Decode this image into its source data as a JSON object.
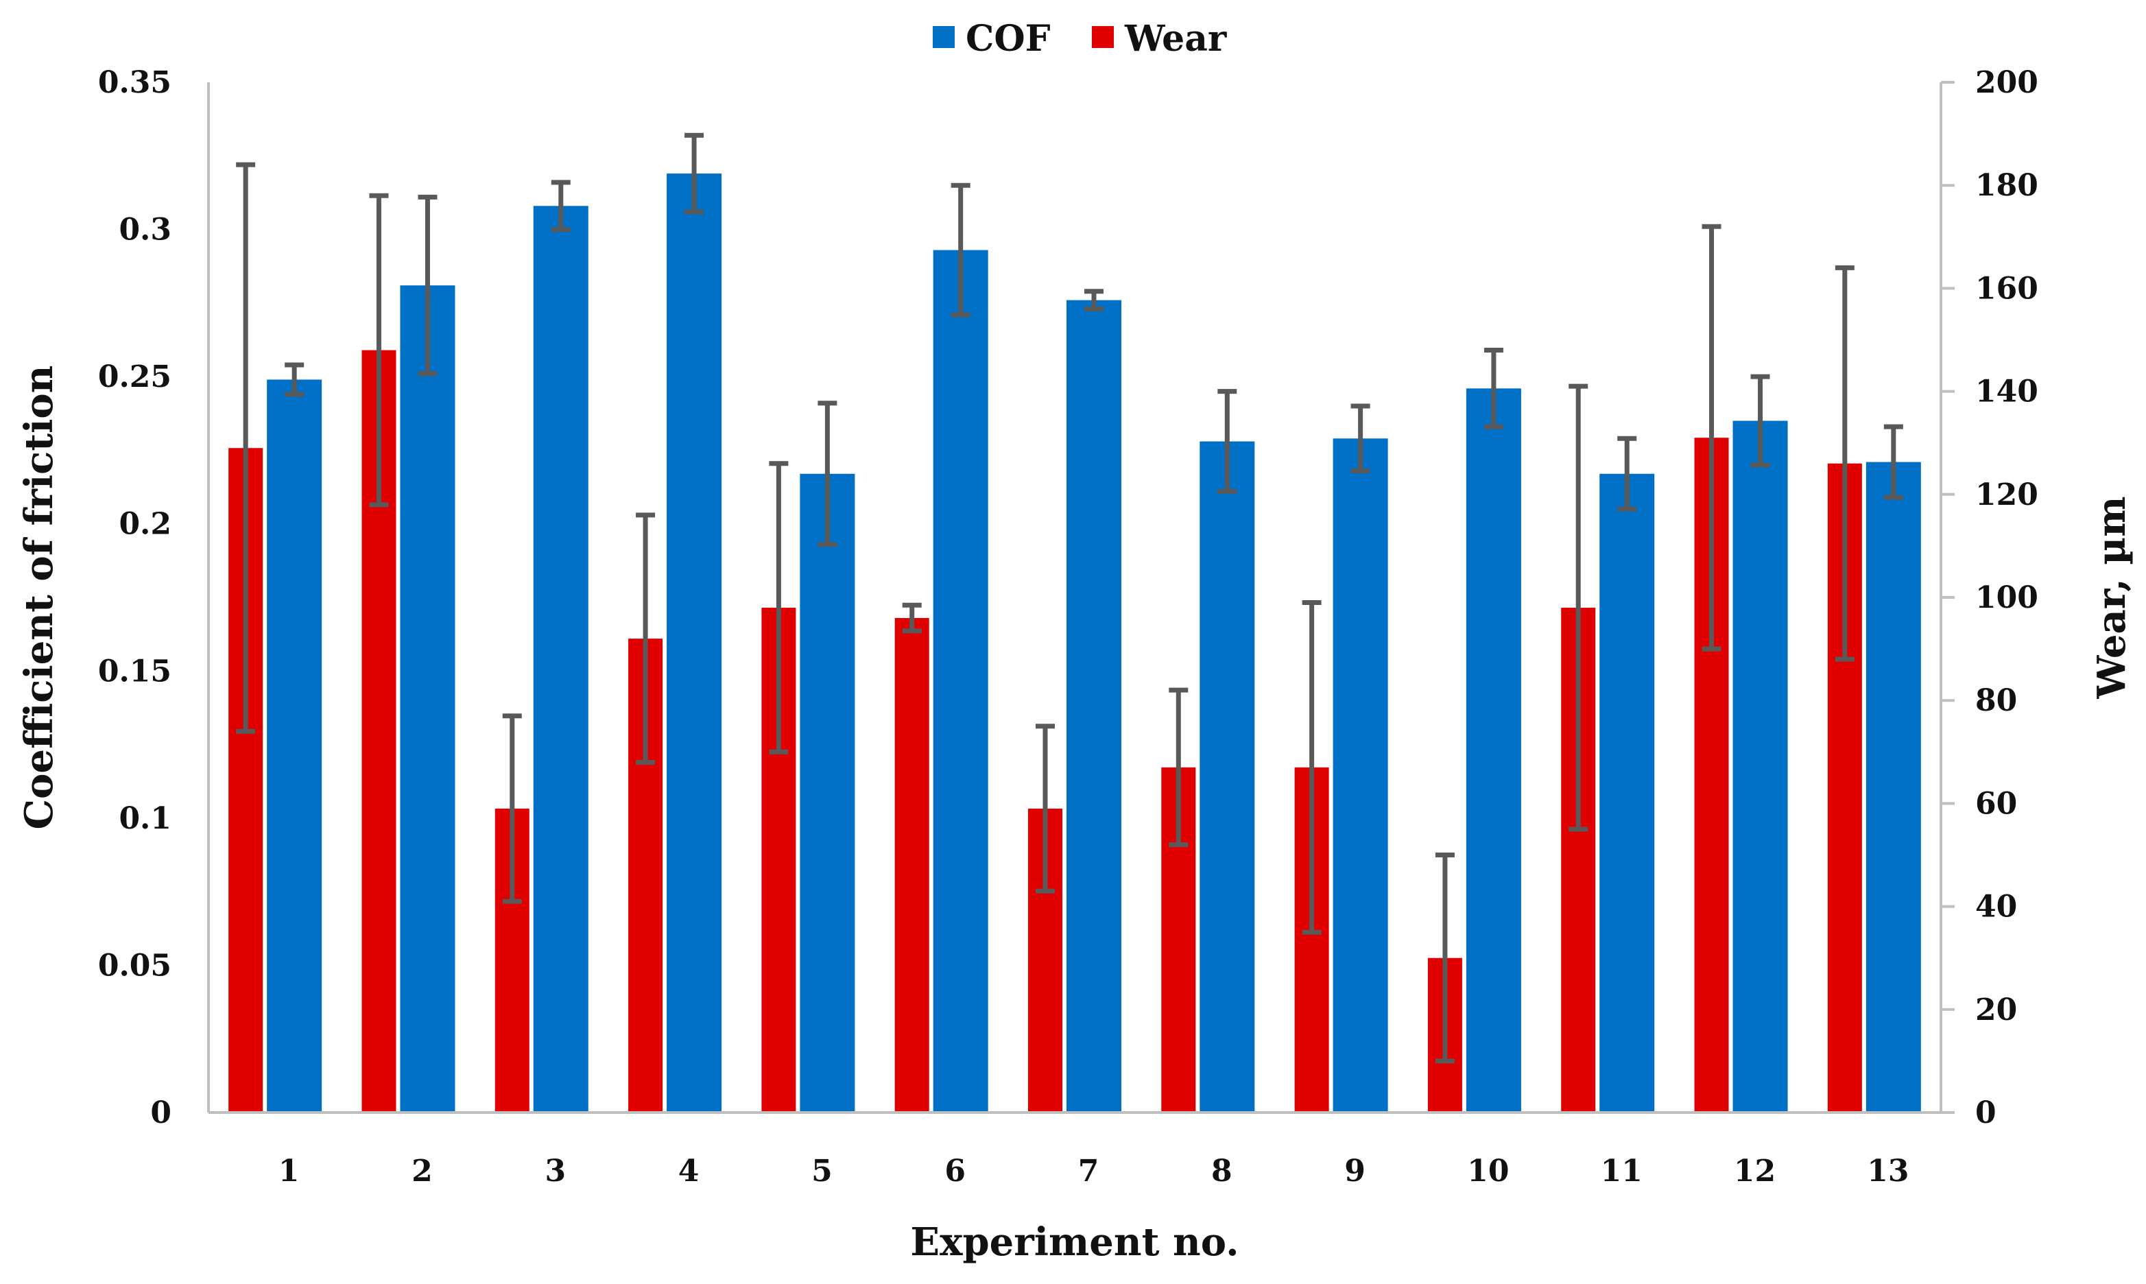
{
  "chart_data": {
    "type": "bar",
    "xlabel": "Experiment no.",
    "ylabel": "Coefficient of friction",
    "y2label": "Wear, µm",
    "categories": [
      "1",
      "2",
      "3",
      "4",
      "5",
      "6",
      "7",
      "8",
      "9",
      "10",
      "11",
      "12",
      "13"
    ],
    "ylim": [
      0,
      0.35
    ],
    "y2lim": [
      0,
      200
    ],
    "yticks": [
      "0",
      "0.05",
      "0.1",
      "0.15",
      "0.2",
      "0.25",
      "0.3",
      "0.35"
    ],
    "y2ticks": [
      "0",
      "20",
      "40",
      "60",
      "80",
      "100",
      "120",
      "140",
      "160",
      "180",
      "200"
    ],
    "legend_position": "top-center",
    "grid": false,
    "series": [
      {
        "name": "Wear",
        "axis": "right",
        "color": "#E00000",
        "values": [
          129,
          148,
          59,
          92,
          98,
          96,
          59,
          67,
          67,
          30,
          98,
          131,
          126
        ],
        "errors": [
          55,
          30,
          18,
          24,
          28,
          2.5,
          16,
          15,
          32,
          20,
          43,
          41,
          38
        ]
      },
      {
        "name": "COF",
        "axis": "left",
        "color": "#0070C6",
        "values": [
          0.249,
          0.281,
          0.308,
          0.319,
          0.217,
          0.293,
          0.276,
          0.228,
          0.229,
          0.246,
          0.217,
          0.235,
          0.221
        ],
        "errors": [
          0.005,
          0.03,
          0.008,
          0.013,
          0.024,
          0.022,
          0.003,
          0.017,
          0.011,
          0.013,
          0.012,
          0.015,
          0.012
        ]
      }
    ],
    "legend": [
      "COF",
      "Wear"
    ]
  }
}
